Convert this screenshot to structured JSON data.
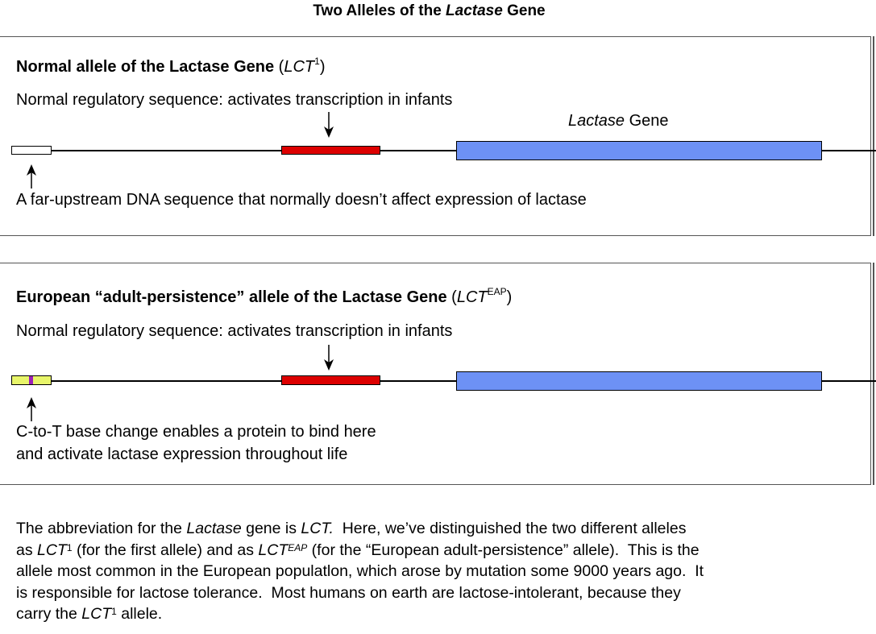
{
  "title": {
    "prefix": "Two Alleles of the ",
    "italic": "Lactase",
    "suffix": " Gene"
  },
  "panel1": {
    "heading_bold": "Normal allele of the Lactase Gene",
    "heading_open": " (",
    "heading_italic": "LCT",
    "heading_sup": "1",
    "heading_close": ")",
    "regulatory_text": "Normal regulatory sequence: activates transcription in infants",
    "gene_label_italic": "Lactase",
    "gene_label_rest": " Gene",
    "upstream_caption": "A far-upstream DNA sequence that normally doesn’t affect expression of lactase"
  },
  "panel2": {
    "heading_bold": "European “adult-persistence” allele of the Lactase Gene",
    "heading_open": " (",
    "heading_italic": "LCT",
    "heading_sup": "EAP",
    "heading_close": ")",
    "regulatory_text": "Normal regulatory sequence: activates transcription in infants",
    "mutation_caption_line1": "C-to-T base change enables a protein to bind here",
    "mutation_caption_line2": "and activate lactase expression throughout life"
  },
  "paragraph": {
    "l1_a": "The abbreviation for the ",
    "l1_b": "Lactase",
    "l1_c": " gene is ",
    "l1_d": "LCT.",
    "l1_e": "  Here, we’ve distinguished the two different alleles",
    "l2_a": "as ",
    "l2_b": "LCT",
    "l2_c": "1",
    "l2_d": " (for the first allele) and as ",
    "l2_e": "LCT",
    "l2_f": "EAP",
    "l2_g": " (for the “European adult-persistence” allele).  This is the",
    "l3": "allele most common in the European populatlon, which arose by mutation some 9000 years ago.  It",
    "l4": "is responsible for lactose tolerance.  Most humans on earth are lactose-intolerant, because they",
    "l5_a": "carry the ",
    "l5_b": "LCT",
    "l5_c": "1",
    "l5_d": " allele."
  },
  "colors": {
    "regulatory_box": "#dd0000",
    "gene_box": "#6d91f5",
    "upstream_normal": "#ffffff",
    "upstream_mutant": "#e8f56a",
    "mutation_mark": "#9b1fb8"
  }
}
